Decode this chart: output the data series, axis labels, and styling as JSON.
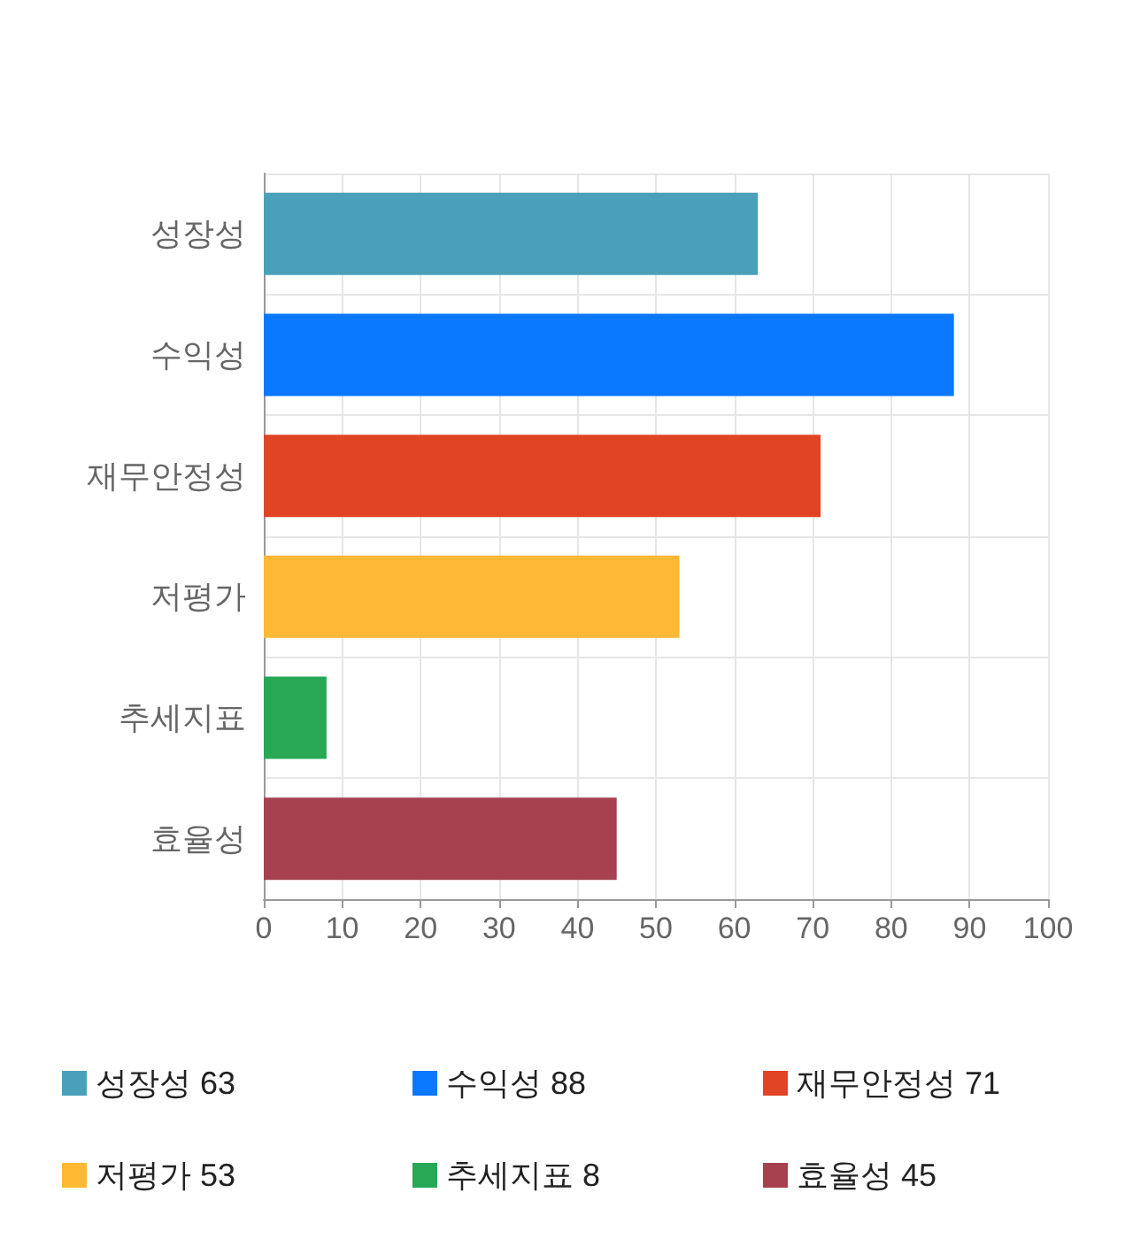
{
  "chart_data": {
    "type": "bar",
    "orientation": "horizontal",
    "categories": [
      "성장성",
      "수익성",
      "재무안정성",
      "저평가",
      "추세지표",
      "효율성"
    ],
    "series": [
      {
        "name": "성장성 63",
        "color": "#4aa0b9",
        "values": [
          63,
          null,
          null,
          null,
          null,
          null
        ]
      },
      {
        "name": "수익성 88",
        "color": "#0a78ff",
        "values": [
          null,
          88,
          null,
          null,
          null,
          null
        ]
      },
      {
        "name": "재무안정성 71",
        "color": "#e14425",
        "values": [
          null,
          null,
          71,
          null,
          null,
          null
        ]
      },
      {
        "name": "저평가 53",
        "color": "#ffb833",
        "values": [
          null,
          null,
          null,
          53,
          null,
          null
        ]
      },
      {
        "name": "추세지표 8",
        "color": "#28a755",
        "values": [
          null,
          null,
          null,
          null,
          8,
          null
        ]
      },
      {
        "name": "효율성 45",
        "color": "#a6414f",
        "values": [
          null,
          null,
          null,
          null,
          null,
          45
        ]
      }
    ],
    "xlim": [
      0,
      100
    ],
    "xticks": [
      0,
      10,
      20,
      30,
      40,
      50,
      60,
      70,
      80,
      90,
      100
    ],
    "grid": true,
    "legend": "bottom"
  }
}
